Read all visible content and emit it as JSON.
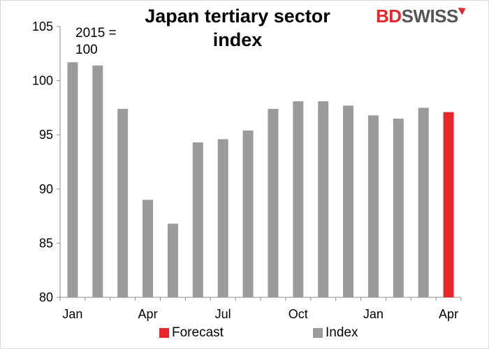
{
  "logo": {
    "part1": "BD",
    "part2": "SWISS"
  },
  "chart_data": {
    "type": "bar",
    "title": "Japan tertiary sector\nindex",
    "unit_note": "2015 =\n100",
    "ylim": [
      80,
      105
    ],
    "yticks": [
      80,
      85,
      90,
      95,
      100,
      105
    ],
    "xtick_labels": [
      "Jan",
      "Apr",
      "Jul",
      "Oct",
      "Jan",
      "Apr"
    ],
    "xtick_positions": [
      0,
      3,
      6,
      9,
      12,
      15
    ],
    "grid": false,
    "legend_position": "bottom",
    "series": [
      {
        "name": "Index",
        "color": "#9b9b9b",
        "values": [
          101.7,
          101.4,
          97.4,
          89.0,
          86.8,
          94.3,
          94.6,
          95.4,
          97.4,
          98.1,
          98.1,
          97.7,
          96.8,
          96.5,
          97.5,
          null
        ]
      },
      {
        "name": "Forecast",
        "color": "#e8262b",
        "values": [
          null,
          null,
          null,
          null,
          null,
          null,
          null,
          null,
          null,
          null,
          null,
          null,
          null,
          null,
          null,
          97.1
        ]
      }
    ],
    "legend": [
      {
        "name": "Forecast",
        "color": "#e8262b"
      },
      {
        "name": "Index",
        "color": "#9b9b9b"
      }
    ]
  }
}
